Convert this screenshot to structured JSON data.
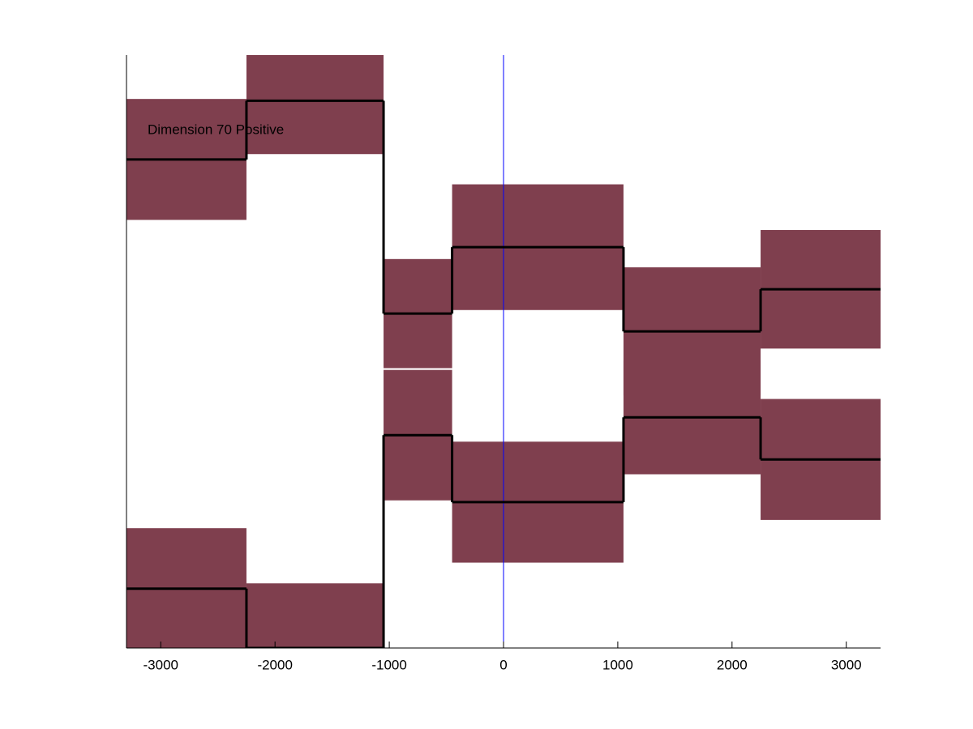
{
  "chart_data": {
    "type": "step-band",
    "annotation": "Dimension 70 Positive",
    "x_edges": [
      -3300,
      -2250,
      -1050,
      -450,
      1050,
      2250,
      3300
    ],
    "series": [
      {
        "values": [
          82.4,
          92.3,
          56.4,
          67.6,
          53.4,
          60.5
        ],
        "band": [
          10.2,
          9,
          9.2,
          10.6,
          10.8,
          10
        ]
      },
      {
        "values": [
          10,
          0,
          35.9,
          24.6,
          38.9,
          31.8
        ],
        "band": [
          10.2,
          10.9,
          11,
          10.2,
          9.6,
          10.2
        ]
      }
    ],
    "line_color": "#000000",
    "band_color": "#7f3f4e",
    "reference_x": 0,
    "reference_color": "#0000ff",
    "xlim": [
      -3300,
      3300
    ],
    "xticks": [
      -3000,
      -2000,
      -1000,
      0,
      1000,
      2000,
      3000
    ],
    "ylim": [
      0,
      100
    ]
  }
}
